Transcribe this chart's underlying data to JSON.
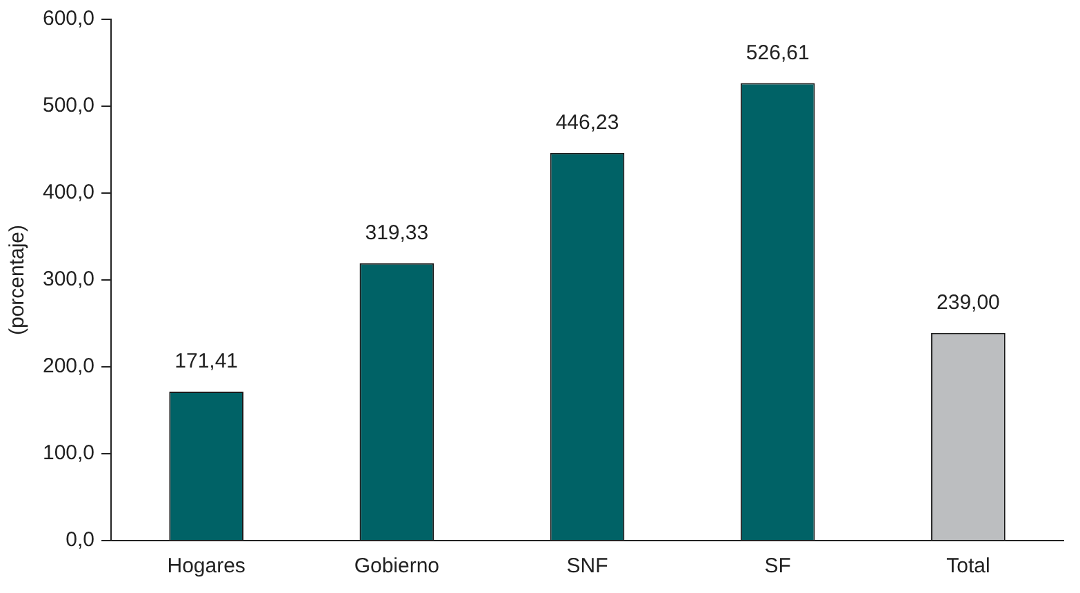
{
  "chart_data": {
    "type": "bar",
    "ylabel": "(porcentaje)",
    "categories": [
      "Hogares",
      "Gobierno",
      "SNF",
      "SF",
      "Total"
    ],
    "values": [
      171.41,
      319.33,
      446.23,
      526.61,
      239.0
    ],
    "colors": [
      "#006266",
      "#006266",
      "#006266",
      "#006266",
      "#bcbec0"
    ],
    "value_labels": [
      "171,41",
      "319,33",
      "446,23",
      "526,61",
      "239,00"
    ],
    "ylim": [
      0,
      600
    ],
    "yticks": [
      {
        "value": 0,
        "label": "0,0"
      },
      {
        "value": 100,
        "label": "100,0"
      },
      {
        "value": 200,
        "label": "200,0"
      },
      {
        "value": 300,
        "label": "300,0"
      },
      {
        "value": 400,
        "label": "400,0"
      },
      {
        "value": 500,
        "label": "500,0"
      },
      {
        "value": 600,
        "label": "600,0"
      }
    ],
    "grid": false,
    "legend": false
  }
}
